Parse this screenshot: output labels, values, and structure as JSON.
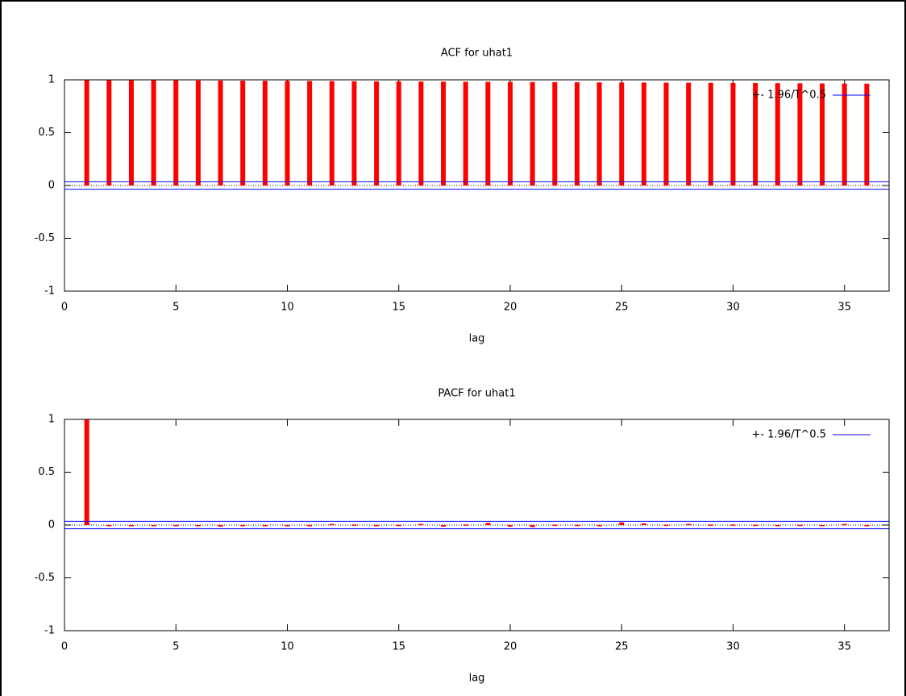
{
  "chart_data": [
    {
      "type": "bar",
      "title": "ACF for uhat1",
      "x_label": "lag",
      "x": [
        1,
        2,
        3,
        4,
        5,
        6,
        7,
        8,
        9,
        10,
        11,
        12,
        13,
        14,
        15,
        16,
        17,
        18,
        19,
        20,
        21,
        22,
        23,
        24,
        25,
        26,
        27,
        28,
        29,
        30,
        31,
        32,
        33,
        34,
        35,
        36
      ],
      "values": [
        0.999,
        0.998,
        0.997,
        0.996,
        0.995,
        0.994,
        0.993,
        0.992,
        0.991,
        0.99,
        0.989,
        0.988,
        0.987,
        0.986,
        0.985,
        0.984,
        0.983,
        0.982,
        0.981,
        0.98,
        0.979,
        0.978,
        0.977,
        0.976,
        0.975,
        0.974,
        0.973,
        0.972,
        0.971,
        0.97,
        0.969,
        0.968,
        0.967,
        0.966,
        0.965,
        0.964
      ],
      "color": "#ff0000",
      "confidence_band": {
        "name": "+- 1.96/T^0.5",
        "color": "#0000ff",
        "value": 0.035
      },
      "xlim": [
        0,
        37
      ],
      "xticks": [
        0,
        5,
        10,
        15,
        20,
        25,
        30,
        35
      ],
      "ylim": [
        -1,
        1
      ],
      "yticks": [
        -1,
        -0.5,
        0,
        0.5,
        1
      ]
    },
    {
      "type": "bar",
      "title": "PACF for uhat1",
      "x_label": "lag",
      "x": [
        1,
        2,
        3,
        4,
        5,
        6,
        7,
        8,
        9,
        10,
        11,
        12,
        13,
        14,
        15,
        16,
        17,
        18,
        19,
        20,
        21,
        22,
        23,
        24,
        25,
        26,
        27,
        28,
        29,
        30,
        31,
        32,
        33,
        34,
        35,
        36
      ],
      "values": [
        0.999,
        -0.005,
        -0.003,
        -0.01,
        -0.005,
        0,
        -0.015,
        -0.01,
        -0.005,
        -0.008,
        -0.012,
        0.01,
        0.005,
        -0.003,
        0.002,
        0.01,
        -0.015,
        0.005,
        0.02,
        -0.015,
        -0.02,
        0.003,
        0.002,
        -0.01,
        0.025,
        0.015,
        0.003,
        0.01,
        0.005,
        0.005,
        0.002,
        -0.005,
        0.002,
        -0.003,
        0.01,
        -0.003
      ],
      "color": "#ff0000",
      "confidence_band": {
        "name": "+- 1.96/T^0.5",
        "color": "#0000ff",
        "value": 0.035
      },
      "xlim": [
        0,
        37
      ],
      "xticks": [
        0,
        5,
        10,
        15,
        20,
        25,
        30,
        35
      ],
      "ylim": [
        -1,
        1
      ],
      "yticks": [
        -1,
        -0.5,
        0,
        0.5,
        1
      ]
    }
  ]
}
